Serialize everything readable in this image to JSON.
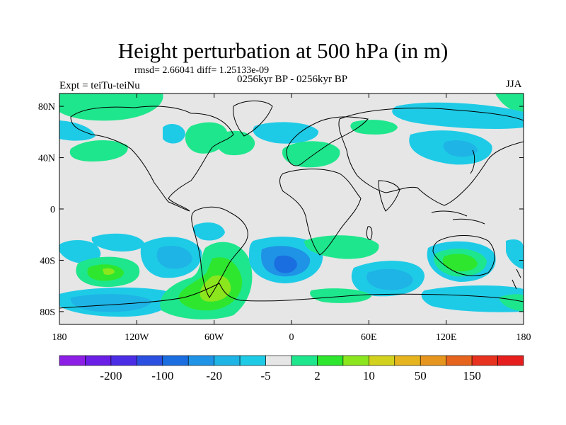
{
  "title": "Height perturbation at 500 hPa (in m)",
  "stats": "rmsd= 2.66041 diff= 1.25133e-09",
  "experiment": "Expt = teiTu-teiNu",
  "period": "0256kyr BP - 0256kyr BP",
  "season": "JJA",
  "axes": {
    "lat_ticks": [
      {
        "label": "80N",
        "lat": 80
      },
      {
        "label": "40N",
        "lat": 40
      },
      {
        "label": "0",
        "lat": 0
      },
      {
        "label": "40S",
        "lat": -40
      },
      {
        "label": "80S",
        "lat": -80
      }
    ],
    "lon_ticks": [
      {
        "label": "180",
        "lon": -180
      },
      {
        "label": "120W",
        "lon": -120
      },
      {
        "label": "60W",
        "lon": -60
      },
      {
        "label": "0",
        "lon": 0
      },
      {
        "label": "60E",
        "lon": 60
      },
      {
        "label": "120E",
        "lon": 120
      },
      {
        "label": "180",
        "lon": 180
      }
    ]
  },
  "colorbar": {
    "colors": [
      "#8c1ee6",
      "#6a1ee6",
      "#4b2de6",
      "#2b4fe0",
      "#1a6ee0",
      "#1f93e6",
      "#1eb4e6",
      "#1ecbe6",
      "#e6e6e6",
      "#1ee68c",
      "#2ee62e",
      "#8ce61e",
      "#d2d21e",
      "#e6b41e",
      "#e6961e",
      "#e6641e",
      "#e6321e",
      "#e61e1e"
    ],
    "labels": [
      {
        "text": "-200",
        "index": 1
      },
      {
        "text": "-100",
        "index": 3
      },
      {
        "text": "-20",
        "index": 5
      },
      {
        "text": "-5",
        "index": 7
      },
      {
        "text": "2",
        "index": 9
      },
      {
        "text": "10",
        "index": 11
      },
      {
        "text": "50",
        "index": 13
      },
      {
        "text": "150",
        "index": 15
      }
    ]
  },
  "colors": {
    "background": "#e6e6e6",
    "cyan": "#1ecbe6",
    "light_blue": "#1eb4e6",
    "blue": "#1f93e6",
    "green_light": "#1ee68c",
    "green": "#2ee62e",
    "yellow_green": "#8ce61e",
    "coast": "#000000"
  }
}
